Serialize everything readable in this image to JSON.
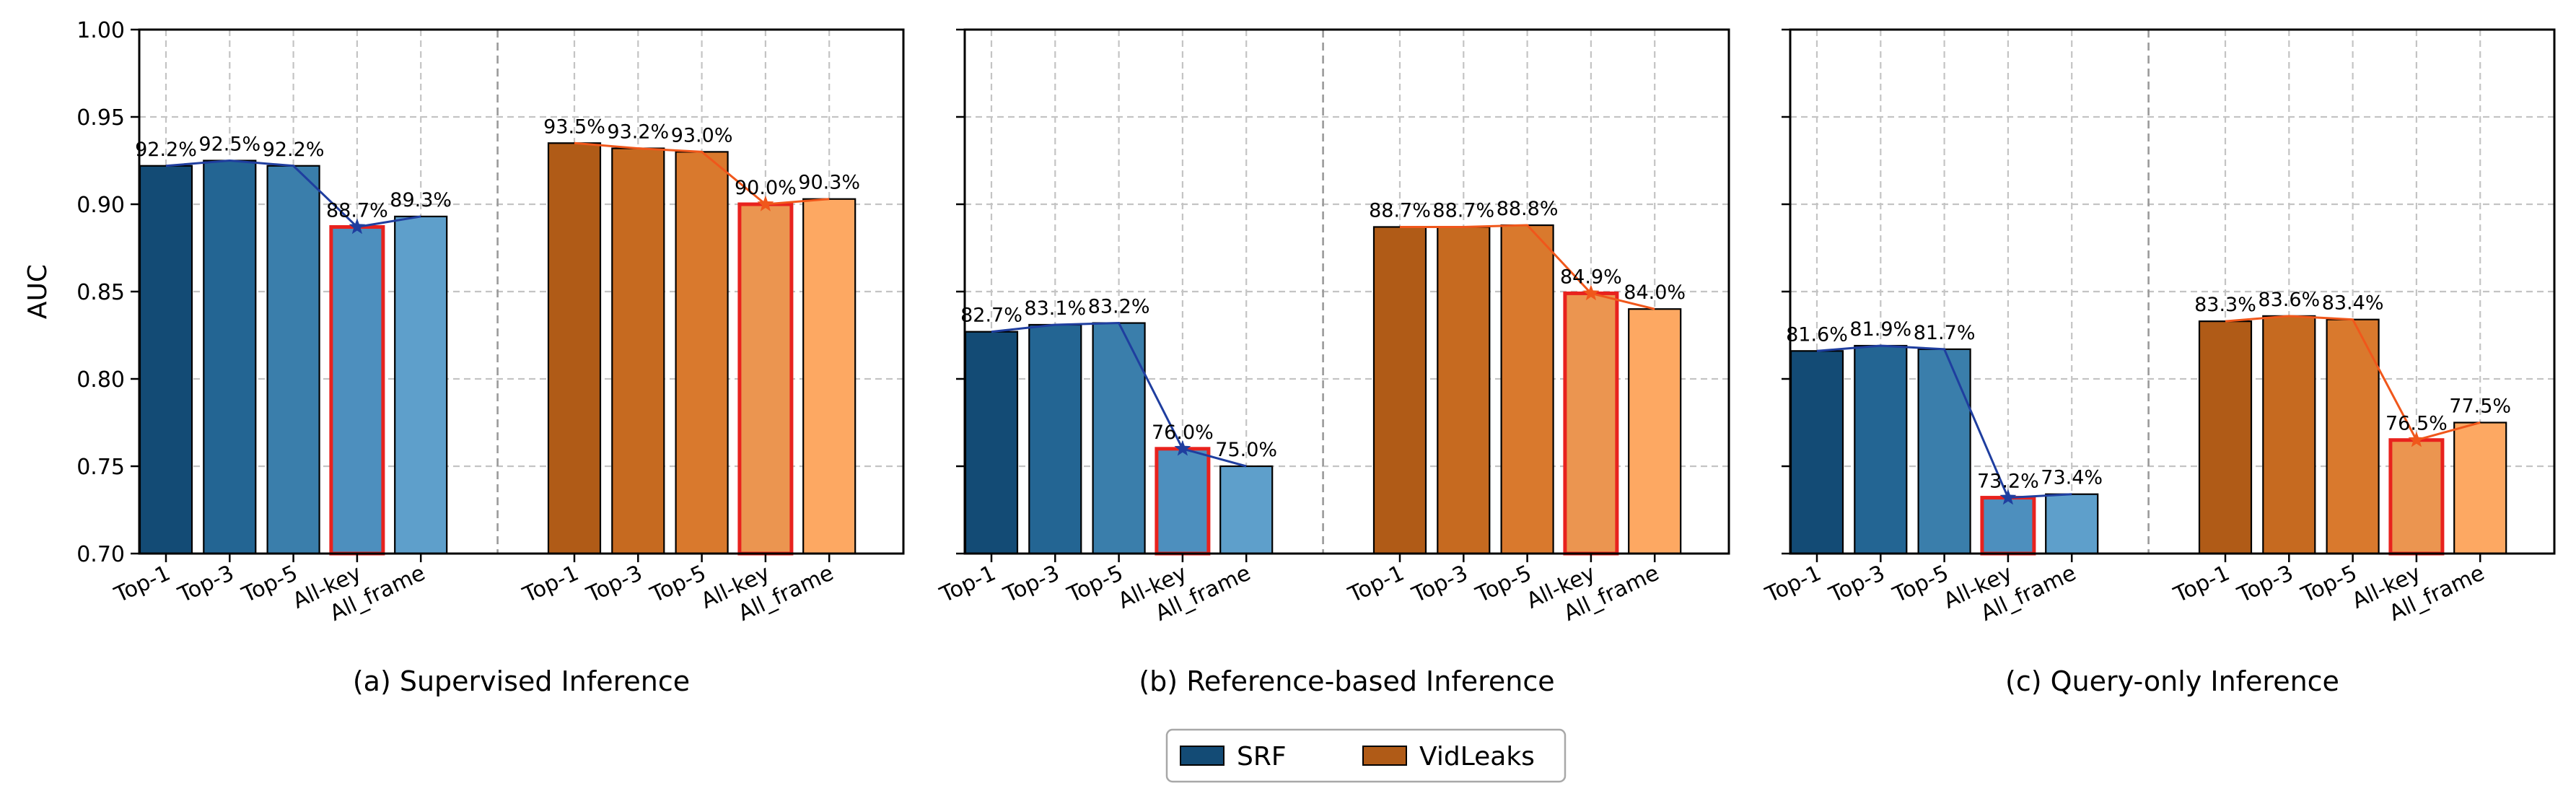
{
  "chart_data": {
    "type": "bar",
    "ylabel": "AUC",
    "ylim": [
      0.7,
      1.0
    ],
    "yticks": [
      0.7,
      0.75,
      0.8,
      0.85,
      0.9,
      0.95,
      1.0
    ],
    "ytick_labels": [
      "0.70",
      "0.75",
      "0.80",
      "0.85",
      "0.90",
      "0.95",
      "1.00"
    ],
    "categories": [
      "Top-1",
      "Top-3",
      "Top-5",
      "All-key",
      "All_frame"
    ],
    "highlight_category": "All-key",
    "grid": true,
    "legend": [
      {
        "name": "SRF",
        "color": "#134b75"
      },
      {
        "name": "VidLeaks",
        "color": "#b05b17"
      }
    ],
    "legend_position": "bottom-center",
    "colors": {
      "SRF": [
        "#134b75",
        "#236593",
        "#3a7eab",
        "#4d8fbe",
        "#5e9fcb"
      ],
      "VidLeaks": [
        "#b05b17",
        "#c66a20",
        "#d9792d",
        "#eb9550",
        "#fda862"
      ],
      "SRF_line": "#1f3e9f",
      "VidLeaks_line": "#f0571b",
      "highlight_edge": "#e8221e"
    },
    "panels": [
      {
        "title": "(a) Supervised Inference",
        "series": [
          {
            "name": "SRF",
            "values": [
              0.922,
              0.925,
              0.922,
              0.887,
              0.893
            ],
            "labels": [
              "92.2%",
              "92.5%",
              "92.2%",
              "88.7%",
              "89.3%"
            ]
          },
          {
            "name": "VidLeaks",
            "values": [
              0.935,
              0.932,
              0.93,
              0.9,
              0.903
            ],
            "labels": [
              "93.5%",
              "93.2%",
              "93.0%",
              "90.0%",
              "90.3%"
            ]
          }
        ]
      },
      {
        "title": "(b) Reference-based Inference",
        "series": [
          {
            "name": "SRF",
            "values": [
              0.827,
              0.831,
              0.832,
              0.76,
              0.75
            ],
            "labels": [
              "82.7%",
              "83.1%",
              "83.2%",
              "76.0%",
              "75.0%"
            ]
          },
          {
            "name": "VidLeaks",
            "values": [
              0.887,
              0.887,
              0.888,
              0.849,
              0.84
            ],
            "labels": [
              "88.7%",
              "88.7%",
              "88.8%",
              "84.9%",
              "84.0%"
            ]
          }
        ]
      },
      {
        "title": "(c) Query-only Inference",
        "series": [
          {
            "name": "SRF",
            "values": [
              0.816,
              0.819,
              0.817,
              0.732,
              0.734
            ],
            "labels": [
              "81.6%",
              "81.9%",
              "81.7%",
              "73.2%",
              "73.4%"
            ]
          },
          {
            "name": "VidLeaks",
            "values": [
              0.833,
              0.836,
              0.834,
              0.765,
              0.775
            ],
            "labels": [
              "83.3%",
              "83.6%",
              "83.4%",
              "76.5%",
              "77.5%"
            ]
          }
        ]
      }
    ]
  }
}
